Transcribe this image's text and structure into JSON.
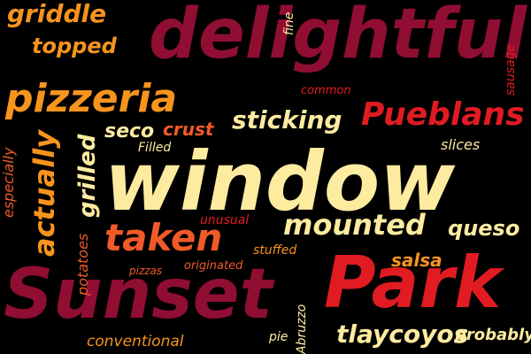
{
  "palette": {
    "background": "#000000",
    "deep_red": "#8f0e32",
    "crimson": "#b4102f",
    "red": "#e11b22",
    "orange_red": "#f05a28",
    "orange": "#f7941d",
    "cream": "#fdeba0"
  },
  "words": {
    "window": "window",
    "delightful": "delightful",
    "sunset": "Sunset",
    "park": "Park",
    "pizzeria": "pizzeria",
    "pueblans": "Pueblans",
    "taken": "taken",
    "mounted": "mounted",
    "griddle": "griddle",
    "topped": "topped",
    "sticking": "sticking",
    "actually": "actually",
    "grilled": "grilled",
    "seco": "seco",
    "crust": "crust",
    "filled": "Filled",
    "slices": "slices",
    "queso": "queso",
    "salsa": "salsa",
    "tlaycoyos": "tlaycoyos",
    "probably": "probably",
    "conventional": "conventional",
    "especially": "especially",
    "potatoes": "potatoes",
    "unusual": "unusual",
    "stuffed": "stuffed",
    "originated": "originated",
    "pizzas": "pizzas",
    "common": "common",
    "fine": "fine",
    "sausage": "sausage",
    "pie": "pie",
    "abruzzo": "Abruzzo"
  }
}
